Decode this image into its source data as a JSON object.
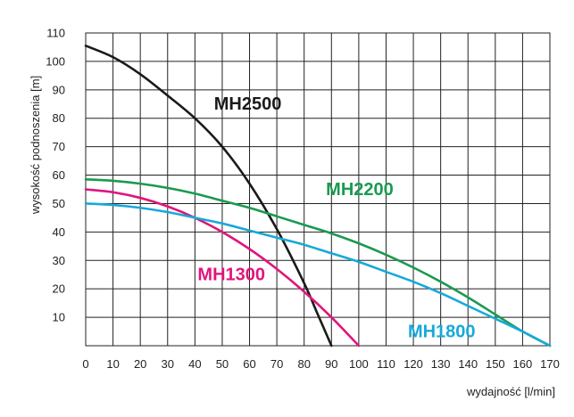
{
  "chart_data": {
    "type": "line",
    "xlabel": "wydajność [l/min]",
    "ylabel": "wysokość podnoszenia [m]",
    "xlim": [
      0,
      170
    ],
    "ylim": [
      0,
      110
    ],
    "x_ticks": [
      "0",
      "10",
      "20",
      "30",
      "40",
      "50",
      "60",
      "70",
      "80",
      "90",
      "100",
      "110",
      "120",
      "130",
      "140",
      "150",
      "160",
      "170"
    ],
    "y_ticks": [
      "10",
      "20",
      "30",
      "40",
      "50",
      "60",
      "70",
      "80",
      "90",
      "100",
      "110"
    ],
    "grid": true,
    "series": [
      {
        "name": "MH2500",
        "color": "#1a1a1a",
        "x": [
          0,
          10,
          20,
          30,
          40,
          50,
          60,
          70,
          80,
          85,
          90
        ],
        "y": [
          105.5,
          101.5,
          95.5,
          88,
          80,
          70,
          57,
          41,
          22,
          11,
          0
        ]
      },
      {
        "name": "MH2200",
        "color": "#1a9a50",
        "x": [
          0,
          10,
          20,
          30,
          40,
          50,
          60,
          70,
          80,
          90,
          100,
          110,
          120,
          130,
          140,
          150,
          160,
          170
        ],
        "y": [
          58.5,
          58,
          57,
          55.5,
          53.5,
          51,
          48.5,
          45.5,
          42.5,
          39.5,
          36,
          32,
          27.5,
          22.5,
          17,
          11,
          5,
          0
        ]
      },
      {
        "name": "MH1300",
        "color": "#e0157c",
        "x": [
          0,
          10,
          20,
          30,
          40,
          50,
          60,
          70,
          80,
          90,
          100
        ],
        "y": [
          55,
          54,
          52,
          49,
          45,
          40,
          34,
          27,
          19,
          10,
          0
        ]
      },
      {
        "name": "MH1800",
        "color": "#17a9d9",
        "x": [
          0,
          10,
          20,
          30,
          40,
          50,
          60,
          70,
          80,
          90,
          100,
          110,
          120,
          130,
          140,
          150,
          160,
          170
        ],
        "y": [
          50,
          49.5,
          48.5,
          47,
          45,
          43,
          40.5,
          38,
          35.5,
          32.5,
          29.5,
          26,
          22.5,
          18.5,
          14,
          9.5,
          5,
          0
        ]
      }
    ],
    "labels": [
      {
        "text": "MH2500",
        "series": 0,
        "at": [
          47,
          83
        ]
      },
      {
        "text": "MH2200",
        "series": 1,
        "at": [
          88,
          53
        ]
      },
      {
        "text": "MH1300",
        "series": 2,
        "at": [
          41,
          23
        ]
      },
      {
        "text": "MH1800",
        "series": 3,
        "at": [
          118,
          3
        ]
      }
    ]
  }
}
